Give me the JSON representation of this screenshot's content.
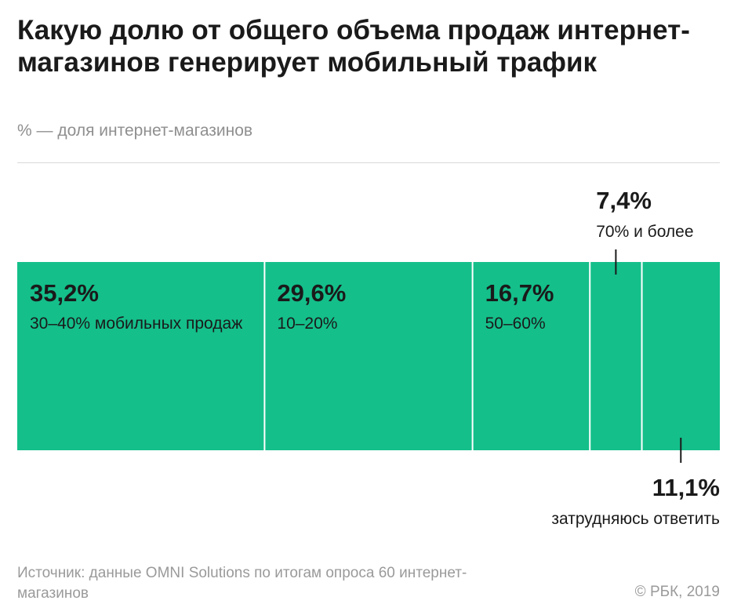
{
  "header": {
    "title": "Какую долю от общего объема продаж интернет-магазинов генерирует мобильный трафик",
    "subtitle": "% — доля интернет-магазинов"
  },
  "chart_data": {
    "type": "bar",
    "orientation": "horizontal-stacked",
    "categories": [
      "30–40% мобильных продаж",
      "10–20%",
      "50–60%",
      "70% и более",
      "затрудняюсь ответить"
    ],
    "values": [
      35.2,
      29.6,
      16.7,
      7.4,
      11.1
    ],
    "value_labels": [
      "35,2%",
      "29,6%",
      "16,7%",
      "7,4%",
      "11,1%"
    ],
    "label_position": [
      "inside",
      "inside",
      "inside",
      "above",
      "below"
    ],
    "color": "#14bf8a",
    "title": "Какую долю от общего объема продаж интернет-магазинов генерирует мобильный трафик",
    "subtitle": "% — доля интернет-магазинов",
    "xlim": [
      0,
      100
    ],
    "grid": false,
    "legend": "none"
  },
  "footer": {
    "source": "Источник: данные OMNI Solutions по итогам опроса 60 интернет-магазинов",
    "copyright": "© РБК, 2019"
  }
}
